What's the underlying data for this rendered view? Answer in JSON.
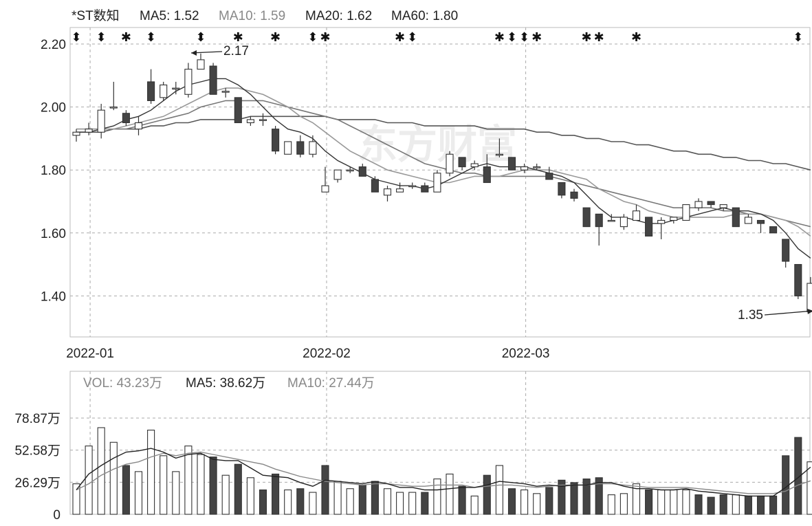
{
  "header": {
    "name": "*ST数知",
    "ma5": "MA5: 1.52",
    "ma10": "MA10: 1.59",
    "ma20": "MA20: 1.62",
    "ma60": "MA60: 1.80"
  },
  "vol_header": {
    "vol": "VOL: 43.23万",
    "ma5": "MA5: 38.62万",
    "ma10": "MA10: 27.44万"
  },
  "annotations": {
    "high": "2.17",
    "low": "1.35"
  },
  "colors": {
    "up": "#ffffff",
    "down": "#444444",
    "ma5": "#333333",
    "ma10": "#999999",
    "ma20": "#777777",
    "ma60": "#555555",
    "grid": "#aaaaaa"
  },
  "chart_data": [
    {
      "type": "candlestick",
      "ylim": [
        1.28,
        2.23
      ],
      "y_ticks": [
        "2.20",
        "2.00",
        "1.80",
        "1.60",
        "1.40"
      ],
      "x_ticks": [
        "2022-01",
        "2022-02",
        "2022-03"
      ],
      "x_tick_index": [
        1,
        20,
        36
      ],
      "event_markers": [
        {
          "i": 0,
          "s": "⬍"
        },
        {
          "i": 2,
          "s": "⬍"
        },
        {
          "i": 4,
          "s": "✱"
        },
        {
          "i": 6,
          "s": "⬍"
        },
        {
          "i": 10,
          "s": "⬍"
        },
        {
          "i": 13,
          "s": "✱"
        },
        {
          "i": 16,
          "s": "✱"
        },
        {
          "i": 19,
          "s": "⬍"
        },
        {
          "i": 20,
          "s": "✱"
        },
        {
          "i": 26,
          "s": "✱"
        },
        {
          "i": 27,
          "s": "⬍"
        },
        {
          "i": 34,
          "s": "✱"
        },
        {
          "i": 35,
          "s": "⬍"
        },
        {
          "i": 36,
          "s": "⬍"
        },
        {
          "i": 37,
          "s": "✱"
        },
        {
          "i": 41,
          "s": "✱"
        },
        {
          "i": 42,
          "s": "✱"
        },
        {
          "i": 45,
          "s": "✱"
        },
        {
          "i": 58,
          "s": "⬍"
        }
      ],
      "ohlc": [
        [
          1.91,
          1.93,
          1.89,
          1.92
        ],
        [
          1.92,
          1.95,
          1.91,
          1.93
        ],
        [
          1.92,
          2.01,
          1.9,
          1.99
        ],
        [
          2.0,
          2.08,
          1.99,
          2.0
        ],
        [
          1.98,
          1.99,
          1.94,
          1.95
        ],
        [
          1.93,
          1.97,
          1.91,
          1.95
        ],
        [
          2.08,
          2.12,
          2.01,
          2.02
        ],
        [
          2.03,
          2.08,
          2.02,
          2.07
        ],
        [
          2.06,
          2.08,
          2.04,
          2.06
        ],
        [
          2.04,
          2.14,
          2.03,
          2.12
        ],
        [
          2.12,
          2.17,
          2.12,
          2.15
        ],
        [
          2.13,
          2.14,
          2.04,
          2.04
        ],
        [
          2.05,
          2.06,
          2.03,
          2.05
        ],
        [
          2.03,
          2.03,
          1.95,
          1.95
        ],
        [
          1.95,
          1.97,
          1.94,
          1.96
        ],
        [
          1.96,
          1.98,
          1.94,
          1.96
        ],
        [
          1.93,
          1.94,
          1.85,
          1.86
        ],
        [
          1.85,
          1.89,
          1.85,
          1.89
        ],
        [
          1.89,
          1.91,
          1.84,
          1.85
        ],
        [
          1.85,
          1.91,
          1.84,
          1.89
        ],
        [
          1.73,
          1.81,
          1.73,
          1.75
        ],
        [
          1.77,
          1.8,
          1.76,
          1.8
        ],
        [
          1.8,
          1.81,
          1.79,
          1.8
        ],
        [
          1.81,
          1.82,
          1.78,
          1.78
        ],
        [
          1.77,
          1.78,
          1.73,
          1.73
        ],
        [
          1.72,
          1.75,
          1.7,
          1.74
        ],
        [
          1.73,
          1.76,
          1.73,
          1.74
        ],
        [
          1.75,
          1.76,
          1.74,
          1.75
        ],
        [
          1.75,
          1.76,
          1.73,
          1.73
        ],
        [
          1.73,
          1.8,
          1.73,
          1.79
        ],
        [
          1.79,
          1.86,
          1.78,
          1.85
        ],
        [
          1.84,
          1.84,
          1.8,
          1.81
        ],
        [
          1.81,
          1.83,
          1.8,
          1.82
        ],
        [
          1.81,
          1.85,
          1.76,
          1.76
        ],
        [
          1.85,
          1.9,
          1.84,
          1.85
        ],
        [
          1.84,
          1.84,
          1.8,
          1.8
        ],
        [
          1.8,
          1.82,
          1.79,
          1.81
        ],
        [
          1.81,
          1.82,
          1.8,
          1.81
        ],
        [
          1.79,
          1.81,
          1.77,
          1.77
        ],
        [
          1.76,
          1.76,
          1.71,
          1.72
        ],
        [
          1.73,
          1.74,
          1.7,
          1.71
        ],
        [
          1.68,
          1.68,
          1.62,
          1.62
        ],
        [
          1.66,
          1.66,
          1.56,
          1.62
        ],
        [
          1.64,
          1.66,
          1.64,
          1.64
        ],
        [
          1.62,
          1.66,
          1.61,
          1.65
        ],
        [
          1.64,
          1.69,
          1.64,
          1.67
        ],
        [
          1.65,
          1.65,
          1.59,
          1.59
        ],
        [
          1.63,
          1.65,
          1.58,
          1.64
        ],
        [
          1.64,
          1.65,
          1.63,
          1.65
        ],
        [
          1.64,
          1.69,
          1.64,
          1.69
        ],
        [
          1.68,
          1.71,
          1.67,
          1.7
        ],
        [
          1.7,
          1.7,
          1.68,
          1.69
        ],
        [
          1.68,
          1.69,
          1.67,
          1.69
        ],
        [
          1.68,
          1.68,
          1.62,
          1.62
        ],
        [
          1.63,
          1.66,
          1.63,
          1.65
        ],
        [
          1.64,
          1.64,
          1.6,
          1.63
        ],
        [
          1.62,
          1.62,
          1.6,
          1.6
        ],
        [
          1.58,
          1.58,
          1.49,
          1.51
        ],
        [
          1.5,
          1.5,
          1.39,
          1.4
        ],
        [
          1.35,
          1.46,
          1.35,
          1.44
        ]
      ],
      "ma5": [
        1.92,
        1.92,
        1.93,
        1.94,
        1.96,
        1.97,
        1.99,
        2.02,
        2.05,
        2.07,
        2.08,
        2.09,
        2.09,
        2.07,
        2.04,
        2.0,
        1.96,
        1.93,
        1.92,
        1.9,
        1.86,
        1.83,
        1.81,
        1.79,
        1.77,
        1.76,
        1.75,
        1.75,
        1.74,
        1.75,
        1.77,
        1.79,
        1.81,
        1.82,
        1.81,
        1.81,
        1.81,
        1.8,
        1.79,
        1.78,
        1.76,
        1.72,
        1.68,
        1.65,
        1.65,
        1.64,
        1.63,
        1.63,
        1.64,
        1.65,
        1.66,
        1.67,
        1.68,
        1.67,
        1.67,
        1.66,
        1.64,
        1.6,
        1.55,
        1.52
      ],
      "ma10": [
        1.93,
        1.93,
        1.93,
        1.93,
        1.94,
        1.95,
        1.96,
        1.97,
        1.99,
        2.01,
        2.03,
        2.05,
        2.06,
        2.06,
        2.05,
        2.04,
        2.02,
        2.0,
        1.97,
        1.95,
        1.92,
        1.89,
        1.86,
        1.84,
        1.82,
        1.8,
        1.79,
        1.78,
        1.77,
        1.76,
        1.76,
        1.77,
        1.78,
        1.78,
        1.78,
        1.79,
        1.8,
        1.8,
        1.8,
        1.79,
        1.78,
        1.77,
        1.74,
        1.72,
        1.7,
        1.69,
        1.67,
        1.66,
        1.65,
        1.65,
        1.65,
        1.65,
        1.65,
        1.66,
        1.66,
        1.66,
        1.65,
        1.64,
        1.62,
        1.59
      ],
      "ma20": [
        1.93,
        1.93,
        1.93,
        1.93,
        1.93,
        1.94,
        1.95,
        1.96,
        1.97,
        1.98,
        2.0,
        2.01,
        2.02,
        2.02,
        2.02,
        2.02,
        2.01,
        2.0,
        1.99,
        1.98,
        1.97,
        1.96,
        1.94,
        1.92,
        1.9,
        1.88,
        1.86,
        1.84,
        1.82,
        1.81,
        1.8,
        1.79,
        1.79,
        1.78,
        1.78,
        1.78,
        1.78,
        1.78,
        1.78,
        1.77,
        1.76,
        1.75,
        1.74,
        1.73,
        1.72,
        1.71,
        1.7,
        1.69,
        1.68,
        1.68,
        1.68,
        1.68,
        1.67,
        1.67,
        1.66,
        1.66,
        1.65,
        1.64,
        1.63,
        1.62
      ],
      "ma60": [
        1.92,
        1.92,
        1.92,
        1.93,
        1.93,
        1.93,
        1.94,
        1.94,
        1.95,
        1.95,
        1.96,
        1.96,
        1.96,
        1.96,
        1.97,
        1.97,
        1.97,
        1.97,
        1.97,
        1.97,
        1.97,
        1.96,
        1.96,
        1.96,
        1.96,
        1.95,
        1.95,
        1.95,
        1.94,
        1.94,
        1.94,
        1.94,
        1.94,
        1.93,
        1.93,
        1.93,
        1.93,
        1.92,
        1.92,
        1.91,
        1.91,
        1.9,
        1.9,
        1.89,
        1.89,
        1.88,
        1.88,
        1.87,
        1.86,
        1.86,
        1.85,
        1.85,
        1.84,
        1.84,
        1.83,
        1.83,
        1.82,
        1.82,
        1.81,
        1.8
      ]
    },
    {
      "type": "bar",
      "unit": "万",
      "ylim": [
        0,
        85
      ],
      "y_ticks": [
        "78.87万",
        "52.58万",
        "26.29万",
        "0"
      ],
      "y_tick_values": [
        78.87,
        52.58,
        26.29,
        0
      ],
      "volume": [
        25,
        56,
        71,
        59,
        40,
        35,
        69,
        48,
        35,
        56,
        49,
        47,
        32,
        41,
        30,
        20,
        33,
        20,
        21,
        18,
        40,
        27,
        21,
        24,
        27,
        21,
        18,
        18,
        18,
        29,
        33,
        23,
        15,
        32,
        40,
        21,
        20,
        17,
        22,
        28,
        26,
        29,
        30,
        16,
        17,
        25,
        20,
        20,
        20,
        20,
        16,
        14,
        16,
        16,
        15,
        15,
        15,
        48,
        63,
        43
      ],
      "volume_up": [
        1,
        1,
        1,
        1,
        0,
        1,
        1,
        1,
        1,
        1,
        1,
        0,
        1,
        0,
        1,
        0,
        0,
        1,
        0,
        1,
        0,
        1,
        1,
        0,
        0,
        1,
        1,
        1,
        0,
        1,
        1,
        0,
        1,
        0,
        1,
        0,
        1,
        1,
        0,
        0,
        0,
        0,
        0,
        1,
        1,
        1,
        0,
        1,
        1,
        1,
        0,
        0,
        0,
        1,
        0,
        0,
        0,
        0,
        0,
        1
      ],
      "vol_ma5": [
        20,
        33,
        40,
        46,
        51,
        52,
        54,
        51,
        46,
        49,
        50,
        45,
        44,
        44,
        38,
        32,
        31,
        30,
        26,
        23,
        28,
        27,
        26,
        25,
        27,
        25,
        22,
        22,
        20,
        20,
        21,
        22,
        22,
        24,
        27,
        26,
        25,
        23,
        24,
        23,
        24,
        24,
        26,
        26,
        23,
        21,
        21,
        20,
        20,
        21,
        19,
        18,
        17,
        16,
        15,
        15,
        15,
        22,
        30,
        38.62
      ],
      "vol_ma10": [
        20,
        25,
        32,
        37,
        41,
        43,
        47,
        50,
        48,
        50,
        51,
        49,
        47,
        45,
        43,
        41,
        37,
        34,
        31,
        29,
        27,
        26,
        25,
        24,
        25,
        25,
        24,
        23,
        23,
        24,
        24,
        24,
        22,
        23,
        24,
        24,
        23,
        22,
        23,
        24,
        24,
        24,
        25,
        25,
        24,
        23,
        22,
        22,
        22,
        22,
        21,
        20,
        19,
        18,
        17,
        17,
        17,
        19,
        24,
        27.44
      ]
    }
  ]
}
